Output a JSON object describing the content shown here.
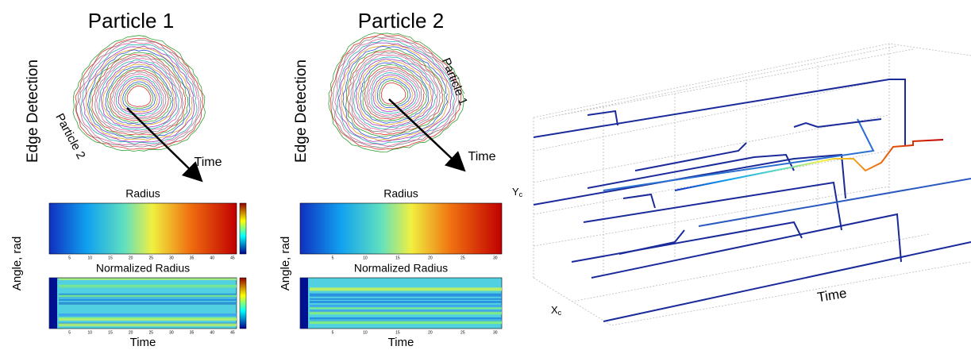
{
  "panels": [
    {
      "title": "Particle 1",
      "side_label": "Edge Detection",
      "contour_label": "Particle 2",
      "arrow_label": "Time",
      "heatmaps": [
        {
          "title": "Radius"
        },
        {
          "title": "Normalized Radius"
        }
      ],
      "y_label": "Angle, rad",
      "x_label": "Time",
      "xticks": [
        5,
        10,
        15,
        20,
        25,
        30,
        35,
        40,
        45
      ]
    },
    {
      "title": "Particle 2",
      "side_label": "Edge Detection",
      "contour_label": "Particle 1",
      "arrow_label": "Time",
      "heatmaps": [
        {
          "title": "Radius"
        },
        {
          "title": "Normalized Radius"
        }
      ],
      "y_label": "Angle, rad",
      "x_label": "Time",
      "xticks": [
        5,
        10,
        15,
        20,
        25,
        30
      ]
    }
  ],
  "plot3d": {
    "y_label": {
      "main": "Y",
      "sub": "c"
    },
    "x_label": {
      "main": "X",
      "sub": "c"
    },
    "time_label": "Time"
  }
}
